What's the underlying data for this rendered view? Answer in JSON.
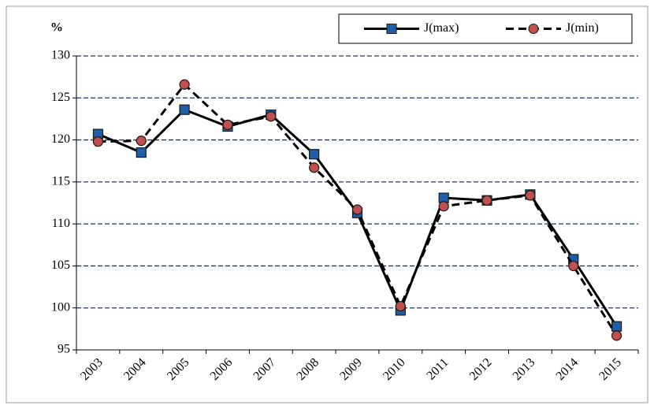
{
  "chart_data": {
    "type": "line",
    "y_label": "%",
    "categories": [
      "2003",
      "2004",
      "2005",
      "2006",
      "2007",
      "2008",
      "2009",
      "2010",
      "2011",
      "2012",
      "2013",
      "2014",
      "2015"
    ],
    "series": [
      {
        "name": "J(max)",
        "color": "#000000",
        "marker_color": "#1f5fa8",
        "marker": "square",
        "line_style": "solid",
        "values": [
          120.7,
          118.5,
          123.6,
          121.6,
          123.0,
          118.3,
          111.3,
          99.7,
          113.1,
          112.8,
          113.5,
          105.8,
          97.8
        ]
      },
      {
        "name": "J(min)",
        "color": "#000000",
        "marker_color": "#c0504d",
        "marker": "circle",
        "line_style": "dashed",
        "values": [
          119.8,
          119.9,
          126.6,
          121.8,
          122.8,
          116.7,
          111.7,
          100.2,
          112.1,
          112.8,
          113.4,
          105.0,
          96.7
        ]
      }
    ],
    "ylim": [
      95,
      130
    ],
    "yticks": [
      95,
      100,
      105,
      110,
      115,
      120,
      125,
      130
    ],
    "grid": true,
    "grid_color": "#1f3864",
    "legend": "top-right"
  }
}
